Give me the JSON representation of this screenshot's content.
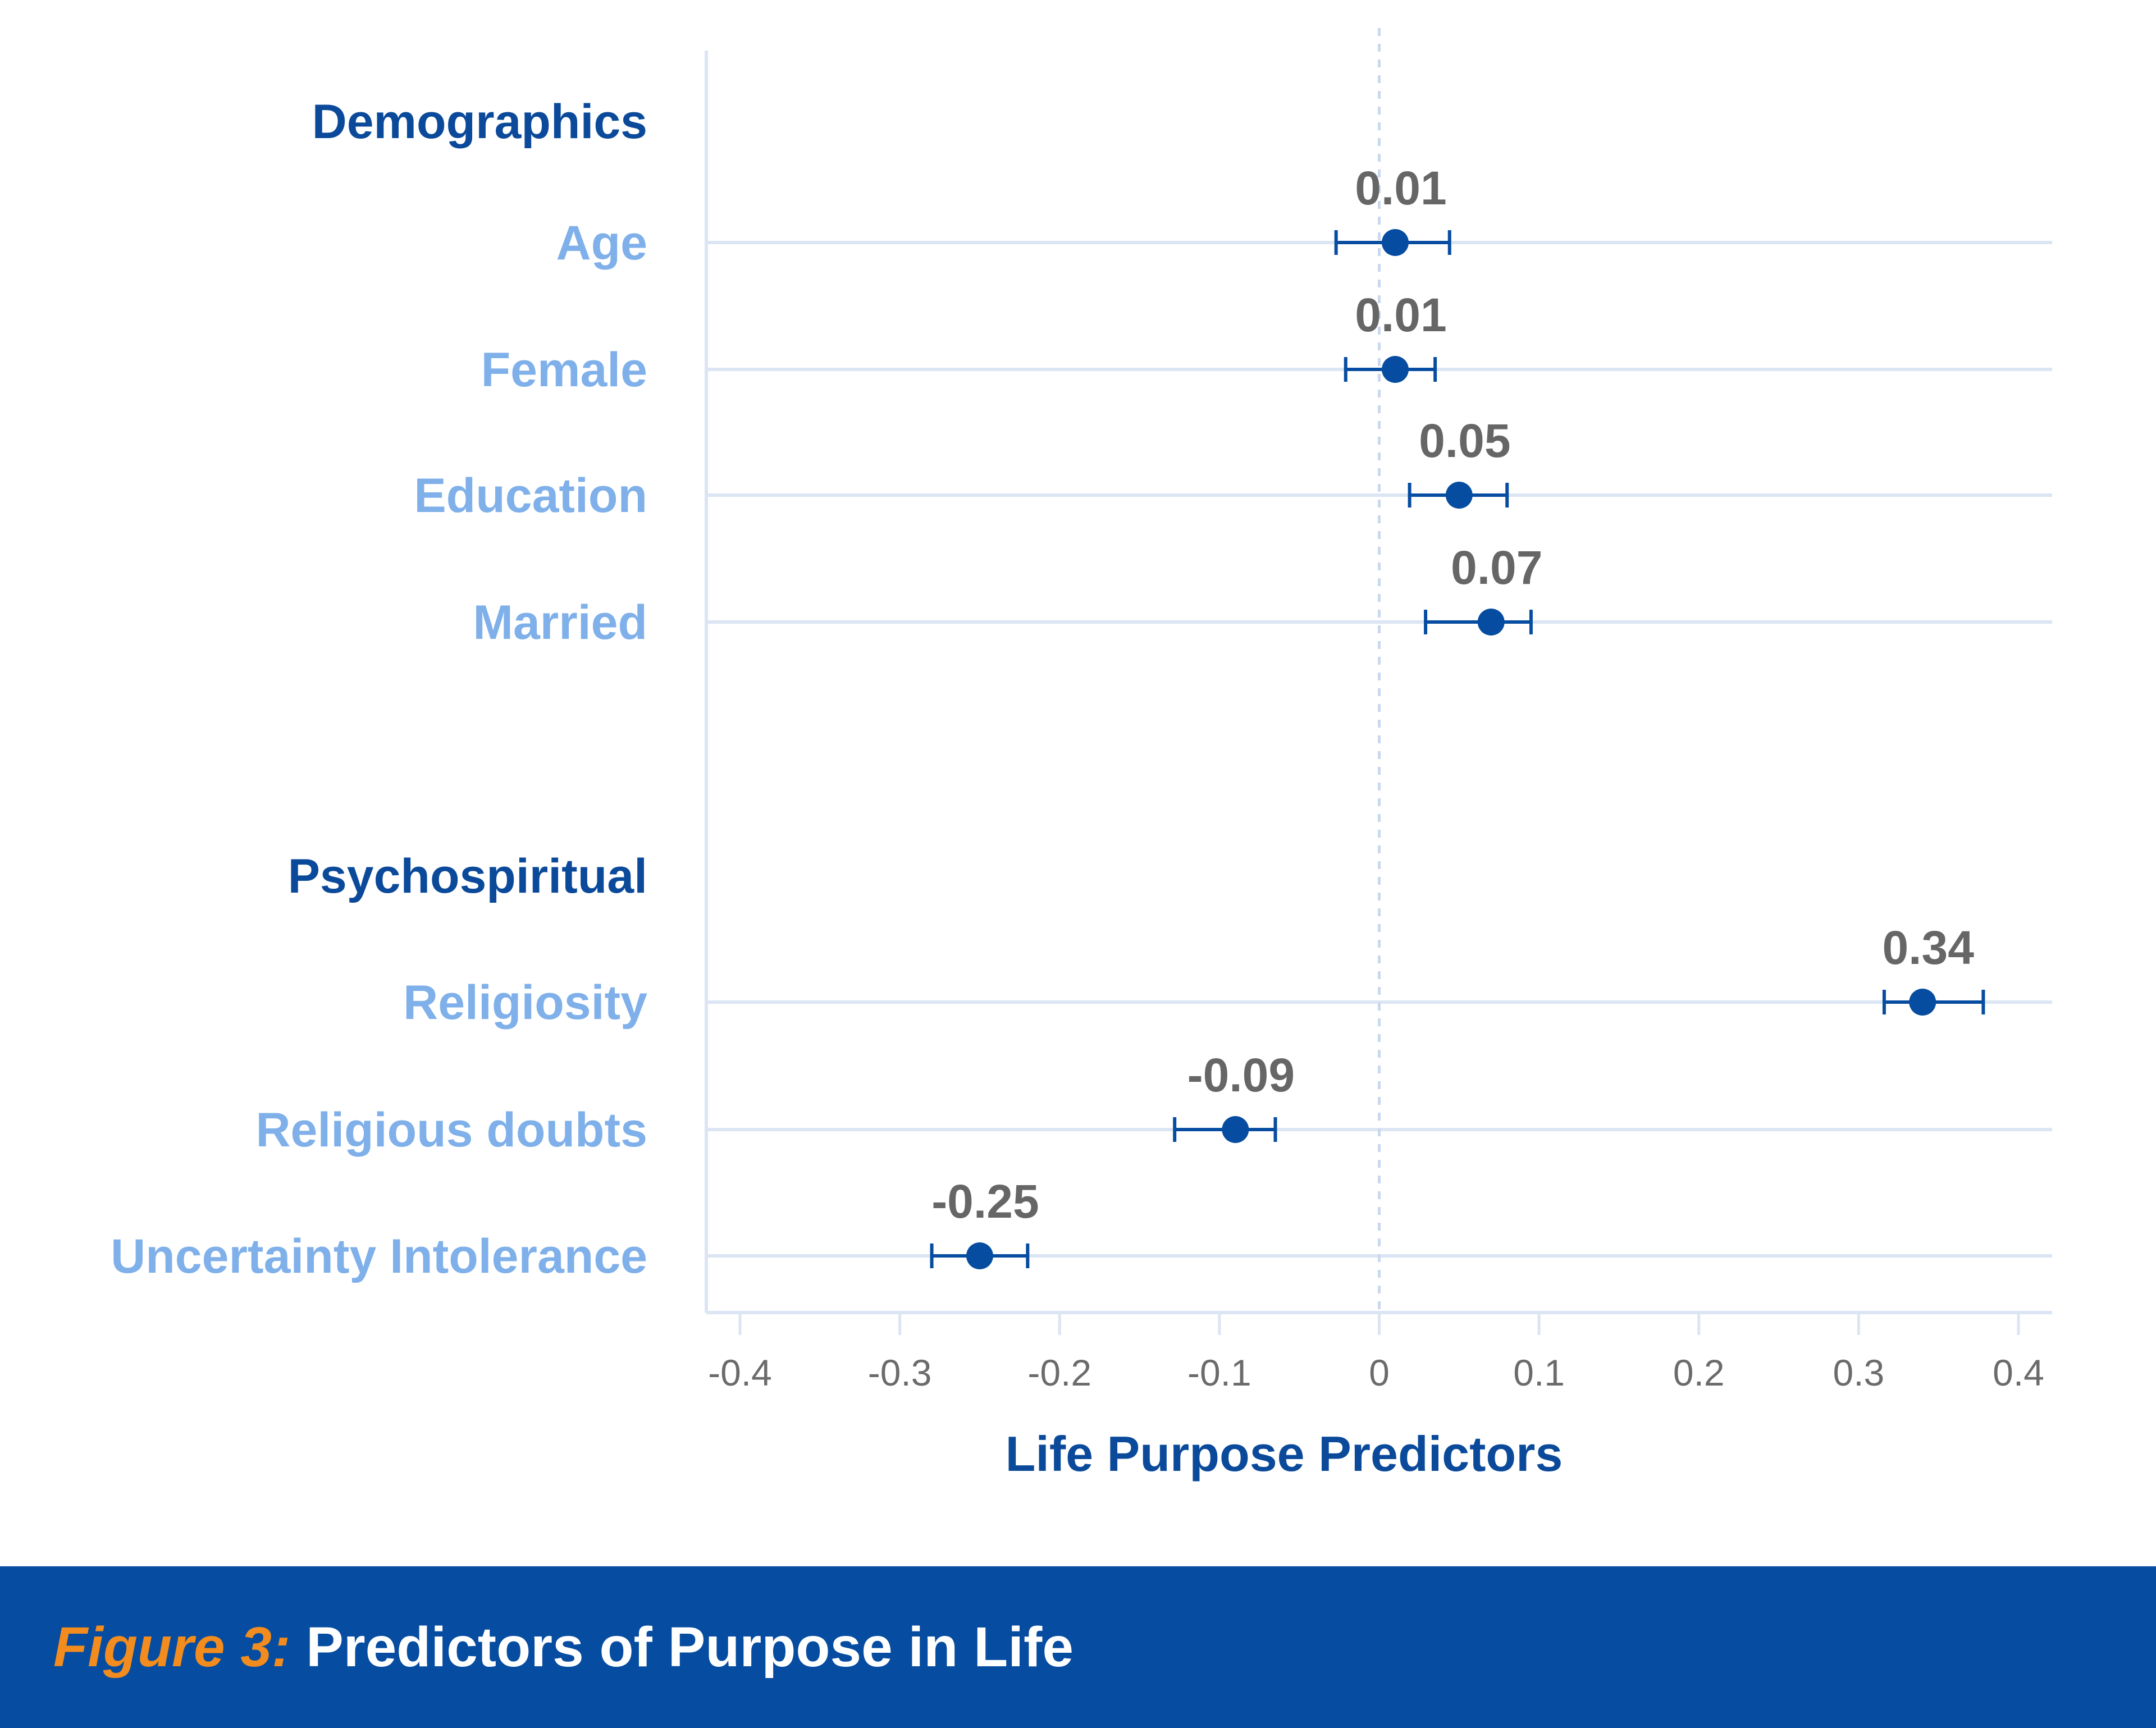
{
  "colors": {
    "group_heading": "#0b4a9a",
    "category_label": "#7fb0ea",
    "marker": "#064ca0",
    "value_label": "#666666",
    "tick_label": "#6b6b6b",
    "gridline": "#dbe5f3",
    "footer_bg": "#064ca0",
    "figure_label": "#f28c1e",
    "footer_title": "#ffffff"
  },
  "chart_data": {
    "type": "scatter",
    "subtype": "forest-plot",
    "xlabel": "Life Purpose Predictors",
    "ylabel": "",
    "xlim": [
      -0.4,
      0.4
    ],
    "xticks": [
      -0.4,
      -0.3,
      -0.2,
      -0.1,
      0,
      0.1,
      0.2,
      0.3,
      0.4
    ],
    "xtick_labels": [
      "-0.4",
      "-0.3",
      "-0.2",
      "-0.1",
      "0",
      "0.1",
      "0.2",
      "0.3",
      "0.4"
    ],
    "reference_line_x": 0,
    "grid": true,
    "groups": [
      {
        "heading": "Demographics",
        "rows": [
          {
            "name": "Age",
            "value": 0.01,
            "label": "0.01",
            "ci": [
              -0.027,
              0.044
            ]
          },
          {
            "name": "Female",
            "value": 0.01,
            "label": "0.01",
            "ci": [
              -0.021,
              0.035
            ]
          },
          {
            "name": "Education",
            "value": 0.05,
            "label": "0.05",
            "ci": [
              0.019,
              0.08
            ]
          },
          {
            "name": "Married",
            "value": 0.07,
            "label": "0.07",
            "ci": [
              0.029,
              0.095
            ]
          }
        ]
      },
      {
        "heading": "Psychospiritual",
        "rows": [
          {
            "name": "Religiosity",
            "value": 0.34,
            "label": "0.34",
            "ci": [
              0.316,
              0.378
            ]
          },
          {
            "name": "Religious doubts",
            "value": -0.09,
            "label": "-0.09",
            "ci": [
              -0.128,
              -0.065
            ]
          },
          {
            "name": "Uncertainty Intolerance",
            "value": -0.25,
            "label": "-0.25",
            "ci": [
              -0.28,
              -0.22
            ]
          }
        ]
      }
    ]
  },
  "footer": {
    "figure_label": "Figure 3:",
    "title": "Predictors of Purpose in Life"
  }
}
